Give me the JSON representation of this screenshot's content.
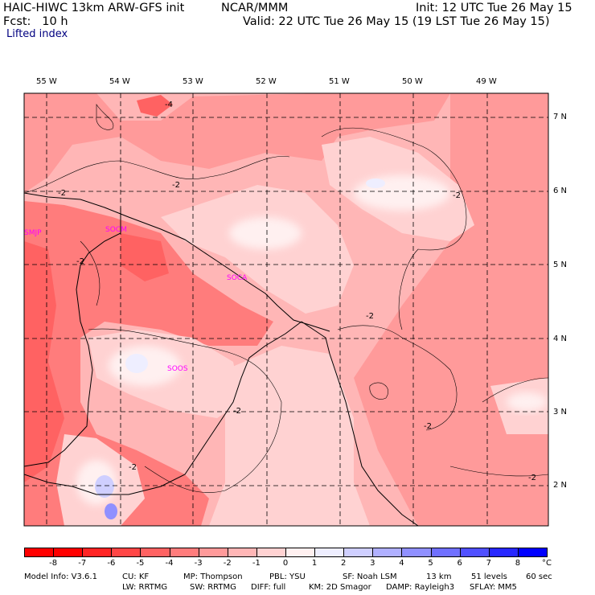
{
  "header": {
    "model": "HAIC-HIWC 13km ARW-GFS init",
    "org": "NCAR/MMM",
    "init": "Init: 12 UTC Tue 26 May 15",
    "fcst": "Fcst:   10 h",
    "valid": "Valid: 22 UTC Tue 26 May 15 (19 LST Tue 26 May 15)",
    "field": "Lifted index"
  },
  "lon_labels": [
    "55 W",
    "54 W",
    "53 W",
    "52 W",
    "51 W",
    "50 W",
    "49 W"
  ],
  "lat_labels": [
    "7 N",
    "6 N",
    "5 N",
    "4 N",
    "3 N",
    "2 N"
  ],
  "stations": [
    "SMJP",
    "SOCM",
    "SOCA",
    "SOOS"
  ],
  "contour_labels": [
    "-4",
    "-2",
    "-2",
    "-2",
    "-2",
    "-2",
    "-2",
    "-2",
    "-2",
    "-2"
  ],
  "colorbar": {
    "values": [
      "-8",
      "-7",
      "-6",
      "-5",
      "-4",
      "-3",
      "-2",
      "-1",
      "0",
      "1",
      "2",
      "3",
      "4",
      "5",
      "6",
      "7",
      "8"
    ],
    "unit": "°C",
    "colors": [
      "#ff0000",
      "#ff2424",
      "#ff4646",
      "#ff6262",
      "#ff7c7c",
      "#ff9a9a",
      "#ffb6b6",
      "#ffd2d2",
      "#fff0f0",
      "#eeeeff",
      "#cfcfff",
      "#b0b0ff",
      "#9090ff",
      "#7070ff",
      "#5050ff",
      "#2828ff",
      "#0000ff"
    ]
  },
  "footer": {
    "line1": [
      "Model Info: V3.6.1",
      "CU: KF",
      "MP: Thompson",
      "PBL: YSU",
      "SF: Noah LSM",
      "13 km",
      "51 levels",
      "60 sec"
    ],
    "line2": [
      "LW: RRTMG",
      "SW: RRTMG",
      "DIFF: full",
      "KM: 2D Smagor",
      "DAMP: Rayleigh3",
      "SFLAY: MM5"
    ]
  }
}
